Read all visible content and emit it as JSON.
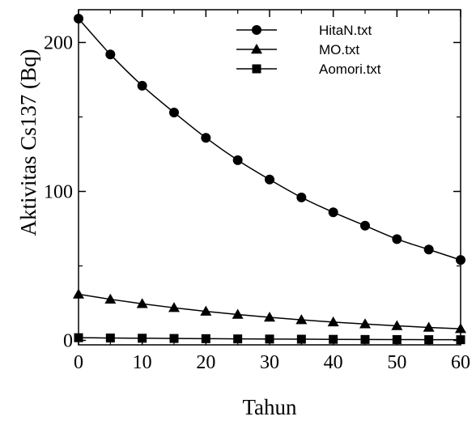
{
  "chart_data": {
    "type": "line",
    "title": "",
    "xlabel": "Tahun",
    "ylabel": "Aktivitas Cs137 (Bq)",
    "xlim": [
      0,
      60
    ],
    "ylim": [
      -3,
      222
    ],
    "x_ticks": [
      0,
      10,
      20,
      30,
      40,
      50,
      60
    ],
    "x_tick_labels": [
      "0",
      "10",
      "20",
      "30",
      "40",
      "50",
      "60"
    ],
    "y_ticks": [
      0,
      100,
      200
    ],
    "y_tick_labels": [
      "0",
      "100",
      "200"
    ],
    "grid": false,
    "legend_position": "top-center",
    "x": [
      0,
      5,
      10,
      15,
      20,
      25,
      30,
      35,
      40,
      45,
      50,
      55,
      60
    ],
    "series": [
      {
        "name": "HitaN.txt",
        "marker": "circle",
        "values": [
          216,
          192,
          171,
          153,
          136,
          121,
          108,
          96,
          86,
          77,
          68,
          61,
          54
        ]
      },
      {
        "name": "MO.txt",
        "marker": "triangle",
        "values": [
          31,
          27.6,
          24.6,
          21.9,
          19.5,
          17.4,
          15.5,
          13.8,
          12.3,
          11,
          9.8,
          8.7,
          7.8
        ]
      },
      {
        "name": "Aomori.txt",
        "marker": "square",
        "values": [
          1.8,
          1.6,
          1.45,
          1.3,
          1.15,
          1.0,
          0.9,
          0.8,
          0.7,
          0.62,
          0.55,
          0.49,
          0.44
        ]
      }
    ]
  }
}
